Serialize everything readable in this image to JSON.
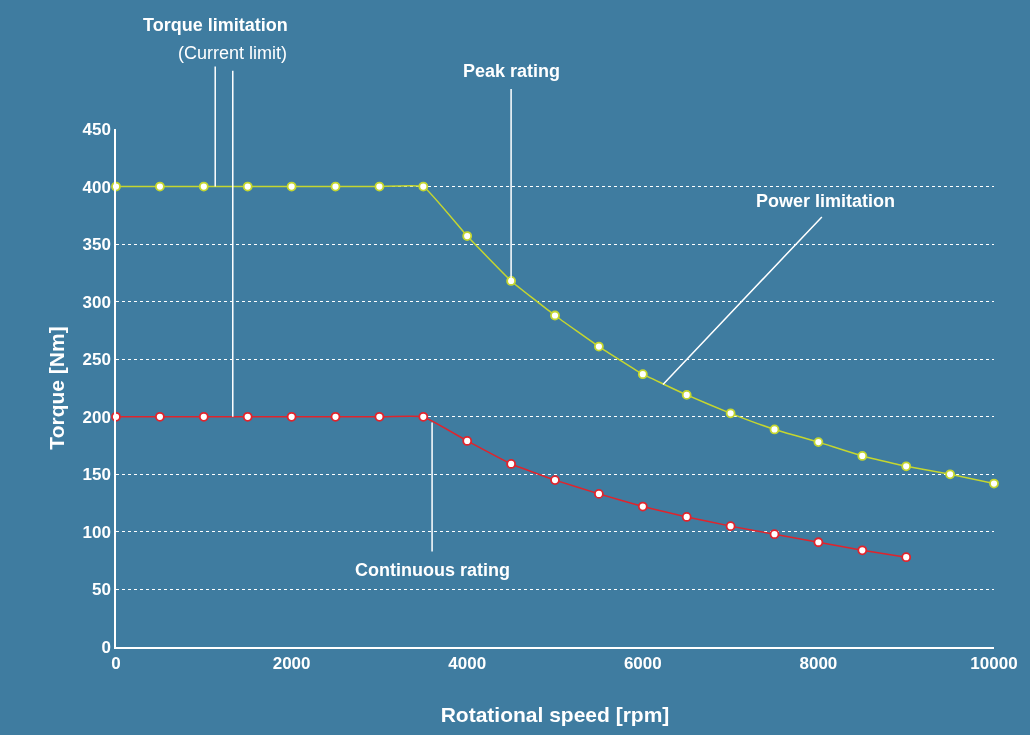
{
  "chart_data": {
    "type": "line",
    "xlabel": "Rotational speed [rpm]",
    "ylabel": "Torque [Nm]",
    "xlim": [
      0,
      10000
    ],
    "xticks": [
      0,
      2000,
      4000,
      6000,
      8000,
      10000
    ],
    "ylim": [
      0,
      450
    ],
    "yticks": [
      0,
      50,
      100,
      150,
      200,
      250,
      300,
      350,
      400,
      450
    ],
    "grid": "y",
    "marker": "circle",
    "line_style": "solid",
    "series": [
      {
        "color": "#c5d62f",
        "x": [
          0,
          500,
          1000,
          1500,
          2000,
          2500,
          3000,
          3500,
          4000,
          4500,
          5000,
          5500,
          6000,
          6500,
          7000,
          7500,
          8000,
          8500,
          9000,
          9500,
          10000
        ],
        "values": [
          400,
          400,
          400,
          400,
          400,
          400,
          400,
          400,
          357,
          318,
          288,
          261,
          237,
          219,
          203,
          189,
          178,
          166,
          157,
          150,
          142
        ]
      },
      {
        "color": "#e0242c",
        "x": [
          0,
          500,
          1000,
          1500,
          2000,
          2500,
          3000,
          3500,
          4000,
          4500,
          5000,
          5500,
          6000,
          6500,
          7000,
          7500,
          8000,
          8500,
          9000
        ],
        "values": [
          200,
          200,
          200,
          200,
          200,
          200,
          200,
          200,
          179,
          159,
          145,
          133,
          122,
          113,
          105,
          98,
          91,
          84,
          78
        ]
      }
    ],
    "annotations": [
      {
        "text": "Torque limitation",
        "x": 1130,
        "y": 400
      },
      {
        "text": "(Current limit)",
        "x": 1330,
        "y": 200
      },
      {
        "text": "Peak rating",
        "x": 4500,
        "y": 318
      },
      {
        "text": "Power limitation",
        "x": 6230,
        "y": 228
      },
      {
        "text": "Continuous rating",
        "x": 3600,
        "y": 195
      }
    ]
  }
}
